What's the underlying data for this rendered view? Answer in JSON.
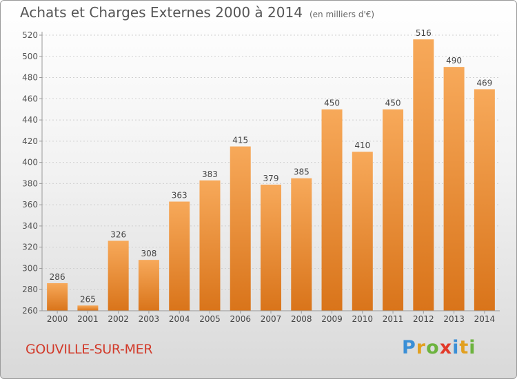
{
  "title": "Achats et Charges Externes 2000 à 2014",
  "unit_note": "(en milliers d'€)",
  "commune": "GOUVILLE-SUR-MER",
  "brand": "Proxiti",
  "colors": {
    "bar_light": "#f7a95a",
    "bar_dark": "#d9741a",
    "title": "#555555",
    "commune": "#d23a2a"
  },
  "chart_data": {
    "type": "bar",
    "categories": [
      "2000",
      "2001",
      "2002",
      "2003",
      "2004",
      "2005",
      "2006",
      "2007",
      "2008",
      "2009",
      "2010",
      "2011",
      "2012",
      "2013",
      "2014"
    ],
    "values": [
      286,
      265,
      326,
      308,
      363,
      383,
      415,
      379,
      385,
      450,
      410,
      450,
      516,
      490,
      469
    ],
    "ylim": [
      260,
      520
    ],
    "yticks": [
      260,
      280,
      300,
      320,
      340,
      360,
      380,
      400,
      420,
      440,
      460,
      480,
      500,
      520
    ],
    "grid": true
  }
}
